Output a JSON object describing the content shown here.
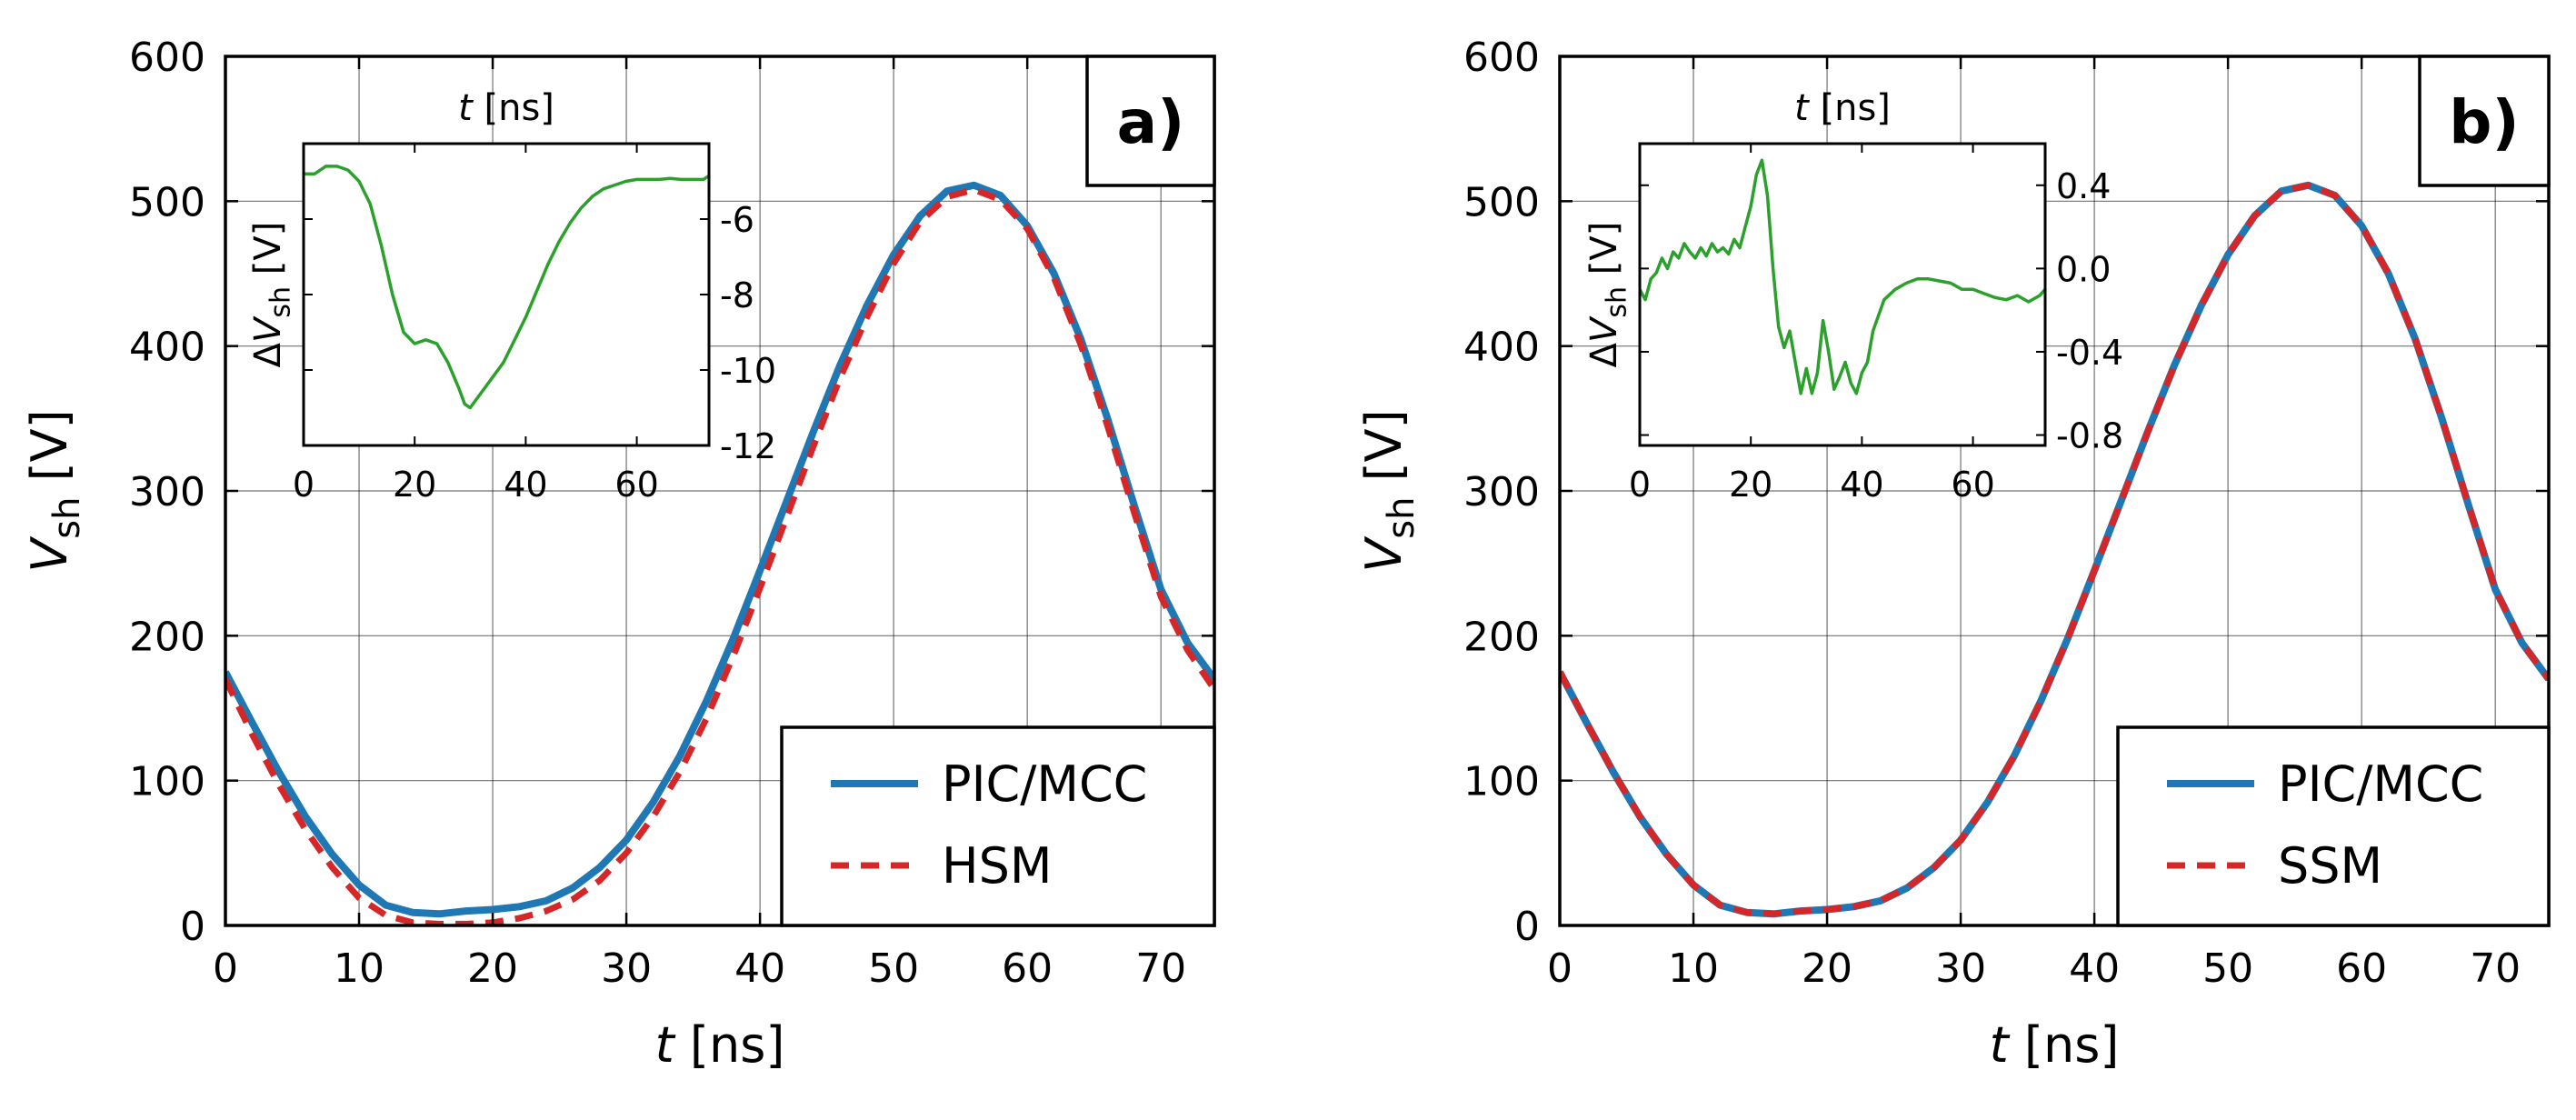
{
  "colors": {
    "pic": "#1f77b4",
    "model": "#d62728",
    "delta": "#2ca02c",
    "axis": "#000000"
  },
  "chart_data": [
    {
      "id": "a",
      "type": "line",
      "panel_label": "a)",
      "xlabel": "t [ns]",
      "ylabel": "V_sh [V]",
      "xlim": [
        0,
        74
      ],
      "ylim": [
        0,
        600
      ],
      "xticks": [
        "0",
        "10",
        "20",
        "30",
        "40",
        "50",
        "60",
        "70"
      ],
      "yticks": [
        "0",
        "100",
        "200",
        "300",
        "400",
        "500",
        "600"
      ],
      "legend_position": "lower-right",
      "series": [
        {
          "name": "PIC/MCC",
          "style": "solid",
          "x": [
            0,
            2,
            4,
            6,
            8,
            10,
            12,
            14,
            16,
            18,
            20,
            22,
            24,
            26,
            28,
            30,
            32,
            34,
            36,
            38,
            40,
            42,
            44,
            46,
            48,
            50,
            52,
            54,
            56,
            58,
            60,
            62,
            64,
            66,
            68,
            70,
            72,
            74
          ],
          "y": [
            175,
            140,
            106,
            75,
            49,
            28,
            14,
            9,
            8,
            10,
            11,
            13,
            17,
            26,
            40,
            59,
            85,
            117,
            155,
            198,
            245,
            293,
            341,
            387,
            428,
            463,
            490,
            507,
            511,
            504,
            483,
            450,
            405,
            350,
            290,
            232,
            195,
            170
          ]
        },
        {
          "name": "HSM",
          "style": "dashed",
          "x": [
            0,
            2,
            4,
            6,
            8,
            10,
            12,
            14,
            16,
            18,
            20,
            22,
            24,
            26,
            28,
            30,
            32,
            34,
            36,
            38,
            40,
            42,
            44,
            46,
            48,
            50,
            52,
            54,
            56,
            58,
            60,
            62,
            64,
            66,
            68,
            70,
            72,
            74
          ],
          "y": [
            170,
            132,
            97,
            66,
            40,
            19,
            7,
            2,
            1,
            1,
            2,
            5,
            10,
            18,
            31,
            50,
            75,
            106,
            143,
            186,
            233,
            282,
            331,
            378,
            420,
            457,
            486,
            503,
            508,
            501,
            481,
            447,
            401,
            345,
            285,
            227,
            190,
            163
          ]
        }
      ],
      "inset": {
        "xlabel": "t [ns]",
        "ylabel": "ΔV_sh [V]",
        "xlim": [
          0,
          73
        ],
        "ylim": [
          -12,
          -4
        ],
        "xticks": [
          "0",
          "20",
          "40",
          "60"
        ],
        "yticks": [
          "-6",
          "-8",
          "-10",
          "-12"
        ],
        "x": [
          0,
          2,
          4,
          6,
          8,
          10,
          12,
          14,
          16,
          18,
          20,
          22,
          24,
          26,
          28,
          29,
          30,
          32,
          34,
          36,
          38,
          40,
          42,
          44,
          46,
          48,
          50,
          52,
          54,
          56,
          58,
          60,
          62,
          64,
          66,
          68,
          70,
          72,
          73
        ],
        "y": [
          -4.8,
          -4.8,
          -4.6,
          -4.6,
          -4.7,
          -5.0,
          -5.6,
          -6.7,
          -8.0,
          -9.0,
          -9.3,
          -9.2,
          -9.3,
          -9.8,
          -10.5,
          -10.9,
          -11.0,
          -10.6,
          -10.2,
          -9.8,
          -9.2,
          -8.6,
          -7.9,
          -7.2,
          -6.6,
          -6.1,
          -5.7,
          -5.4,
          -5.2,
          -5.1,
          -5.0,
          -4.95,
          -4.95,
          -4.95,
          -4.92,
          -4.95,
          -4.95,
          -4.95,
          -4.85
        ]
      }
    },
    {
      "id": "b",
      "type": "line",
      "panel_label": "b)",
      "xlabel": "t [ns]",
      "ylabel": "V_sh [V]",
      "xlim": [
        0,
        74
      ],
      "ylim": [
        0,
        600
      ],
      "xticks": [
        "0",
        "10",
        "20",
        "30",
        "40",
        "50",
        "60",
        "70"
      ],
      "yticks": [
        "0",
        "100",
        "200",
        "300",
        "400",
        "500",
        "600"
      ],
      "legend_position": "lower-right",
      "series": [
        {
          "name": "PIC/MCC",
          "style": "solid",
          "x": [
            0,
            2,
            4,
            6,
            8,
            10,
            12,
            14,
            16,
            18,
            20,
            22,
            24,
            26,
            28,
            30,
            32,
            34,
            36,
            38,
            40,
            42,
            44,
            46,
            48,
            50,
            52,
            54,
            56,
            58,
            60,
            62,
            64,
            66,
            68,
            70,
            72,
            74
          ],
          "y": [
            175,
            140,
            106,
            75,
            49,
            28,
            14,
            9,
            8,
            10,
            11,
            13,
            17,
            26,
            40,
            59,
            85,
            117,
            155,
            198,
            245,
            293,
            341,
            387,
            428,
            463,
            490,
            507,
            511,
            504,
            483,
            450,
            405,
            350,
            290,
            232,
            195,
            170
          ]
        },
        {
          "name": "SSM",
          "style": "dashed",
          "x": [
            0,
            2,
            4,
            6,
            8,
            10,
            12,
            14,
            16,
            18,
            20,
            22,
            24,
            26,
            28,
            30,
            32,
            34,
            36,
            38,
            40,
            42,
            44,
            46,
            48,
            50,
            52,
            54,
            56,
            58,
            60,
            62,
            64,
            66,
            68,
            70,
            72,
            74
          ],
          "y": [
            175,
            140,
            106,
            75,
            49,
            28,
            14,
            9,
            8,
            10,
            11,
            13,
            17,
            26,
            40,
            59,
            85,
            117,
            155,
            198,
            245,
            293,
            341,
            387,
            428,
            463,
            490,
            507,
            511,
            504,
            483,
            450,
            405,
            350,
            290,
            232,
            195,
            170
          ]
        }
      ],
      "inset": {
        "xlabel": "t [ns]",
        "ylabel": "ΔV_sh [V]",
        "xlim": [
          0,
          73
        ],
        "ylim": [
          -0.85,
          0.6
        ],
        "xticks": [
          "0",
          "20",
          "40",
          "60"
        ],
        "yticks": [
          "0.4",
          "0.0",
          "-0.4",
          "-0.8"
        ],
        "x": [
          0,
          1,
          2,
          3,
          4,
          5,
          6,
          7,
          8,
          9,
          10,
          11,
          12,
          13,
          14,
          15,
          16,
          17,
          18,
          19,
          20,
          21,
          22,
          23,
          24,
          25,
          26,
          27,
          28,
          29,
          30,
          31,
          32,
          33,
          34,
          35,
          36,
          37,
          38,
          39,
          40,
          41,
          42,
          44,
          46,
          48,
          50,
          52,
          54,
          56,
          58,
          60,
          62,
          64,
          66,
          68,
          70,
          72,
          73
        ],
        "y": [
          -0.1,
          -0.15,
          -0.05,
          -0.02,
          0.05,
          0.0,
          0.08,
          0.05,
          0.12,
          0.08,
          0.05,
          0.1,
          0.06,
          0.12,
          0.08,
          0.1,
          0.07,
          0.14,
          0.1,
          0.2,
          0.3,
          0.45,
          0.52,
          0.35,
          0.0,
          -0.28,
          -0.38,
          -0.3,
          -0.45,
          -0.6,
          -0.48,
          -0.6,
          -0.5,
          -0.25,
          -0.4,
          -0.58,
          -0.52,
          -0.45,
          -0.55,
          -0.6,
          -0.5,
          -0.45,
          -0.3,
          -0.15,
          -0.1,
          -0.07,
          -0.05,
          -0.05,
          -0.06,
          -0.07,
          -0.1,
          -0.1,
          -0.12,
          -0.14,
          -0.15,
          -0.13,
          -0.16,
          -0.13,
          -0.1
        ]
      }
    }
  ]
}
